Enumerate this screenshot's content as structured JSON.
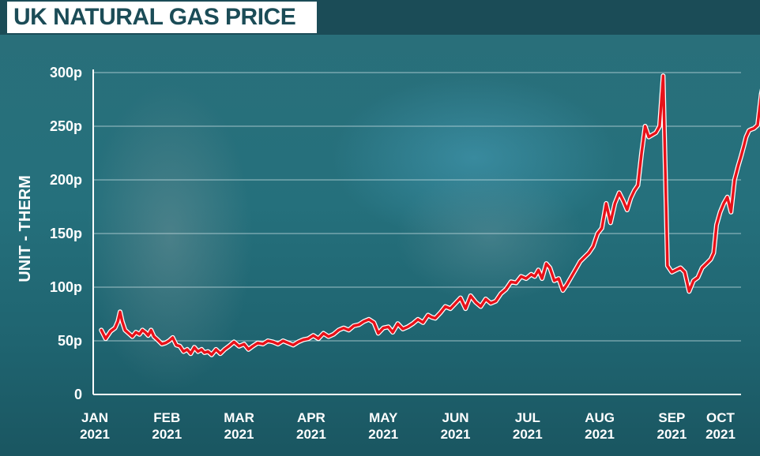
{
  "header": {
    "title": "UK NATURAL GAS PRICE"
  },
  "colors": {
    "line": "#e8121a",
    "grid": "#c9dfe3",
    "text": "#ffffff",
    "header_bg": "#1b4c57"
  },
  "chart_data": {
    "type": "line",
    "title": "UK NATURAL GAS PRICE",
    "ylabel": "UNIT - THERM",
    "xlabel": "",
    "ylim": [
      0,
      300
    ],
    "yticks": [
      0,
      50,
      100,
      150,
      200,
      250,
      300
    ],
    "ytick_labels": [
      "0",
      "50p",
      "100p",
      "150p",
      "200p",
      "250p",
      "300p"
    ],
    "xlim": [
      0.0,
      9.4
    ],
    "xtick_positions": [
      0,
      1,
      2,
      3,
      4,
      5,
      6,
      7,
      8,
      9
    ],
    "xtick_months": [
      "JAN",
      "FEB",
      "MAR",
      "APR",
      "MAY",
      "JUN",
      "JUL",
      "AUG",
      "SEP",
      "OCT"
    ],
    "xtick_years": [
      "2021",
      "2021",
      "2021",
      "2021",
      "2021",
      "2021",
      "2021",
      "2021",
      "2021",
      "2021"
    ],
    "grid": true,
    "series": [
      {
        "x": [
          0.09,
          0.15,
          0.22,
          0.28,
          0.32,
          0.35,
          0.38,
          0.42,
          0.47,
          0.52,
          0.57,
          0.62,
          0.66,
          0.7,
          0.74,
          0.78,
          0.82,
          0.87,
          0.93,
          0.98,
          1.03,
          1.08,
          1.13,
          1.18,
          1.23,
          1.28,
          1.33,
          1.38,
          1.43,
          1.48,
          1.52,
          1.57,
          1.62,
          1.68,
          1.74,
          1.8,
          1.86,
          1.93,
          2.0,
          2.07,
          2.13,
          2.19,
          2.26,
          2.33,
          2.4,
          2.47,
          2.54,
          2.61,
          2.68,
          2.75,
          2.82,
          2.89,
          2.96,
          3.03,
          3.1,
          3.17,
          3.24,
          3.31,
          3.38,
          3.45,
          3.52,
          3.59,
          3.66,
          3.73,
          3.8,
          3.87,
          3.93,
          4.0,
          4.07,
          4.13,
          4.2,
          4.27,
          4.34,
          4.41,
          4.48,
          4.55,
          4.62,
          4.67,
          4.72,
          4.79,
          4.86,
          4.93,
          5.0,
          5.07,
          5.14,
          5.21,
          5.28,
          5.35,
          5.42,
          5.49,
          5.56,
          5.63,
          5.7,
          5.77,
          5.84,
          5.91,
          5.98,
          6.05,
          6.1,
          6.15,
          6.2,
          6.26,
          6.31,
          6.37,
          6.43,
          6.49,
          6.55,
          6.61,
          6.67,
          6.73,
          6.79,
          6.85,
          6.91,
          6.97,
          7.03,
          7.09,
          7.15,
          7.21,
          7.27,
          7.33,
          7.38,
          7.43,
          7.48,
          7.53,
          7.58,
          7.63,
          7.68,
          7.73,
          7.78,
          7.83,
          7.88,
          7.94,
          8.0,
          8.06,
          8.12,
          8.18,
          8.24,
          8.3,
          8.36,
          8.42,
          8.48,
          8.54,
          8.58,
          8.62,
          8.67,
          8.72,
          8.77,
          8.82,
          8.87,
          8.92,
          8.96,
          9.0,
          9.03,
          9.07,
          9.1,
          9.14,
          9.19,
          9.24,
          9.27,
          9.3
        ],
        "values": [
          60,
          52,
          59,
          62,
          68,
          77,
          68,
          60,
          57,
          54,
          58,
          56,
          60,
          58,
          55,
          60,
          54,
          51,
          47,
          48,
          50,
          53,
          46,
          45,
          40,
          42,
          38,
          44,
          40,
          42,
          39,
          40,
          37,
          42,
          38,
          42,
          45,
          49,
          45,
          47,
          42,
          45,
          48,
          47,
          50,
          49,
          47,
          50,
          48,
          46,
          49,
          51,
          52,
          55,
          52,
          57,
          54,
          56,
          60,
          62,
          60,
          64,
          65,
          68,
          70,
          67,
          57,
          62,
          63,
          58,
          66,
          61,
          63,
          66,
          70,
          67,
          74,
          72,
          71,
          76,
          82,
          80,
          85,
          90,
          80,
          92,
          86,
          82,
          89,
          85,
          87,
          94,
          98,
          105,
          104,
          110,
          108,
          112,
          110,
          116,
          108,
          122,
          118,
          106,
          108,
          97,
          103,
          110,
          117,
          124,
          128,
          132,
          138,
          150,
          155,
          178,
          160,
          178,
          188,
          180,
          172,
          183,
          190,
          195,
          225,
          250,
          240,
          242,
          244,
          250,
          297,
          120,
          114,
          116,
          118,
          114,
          96,
          106,
          109,
          118,
          122,
          126,
          132,
          158,
          170,
          178,
          184,
          170,
          200,
          213,
          222,
          232,
          240,
          246,
          247,
          248,
          251,
          280,
          290,
          297
        ],
        "values_note": ""
      }
    ]
  }
}
